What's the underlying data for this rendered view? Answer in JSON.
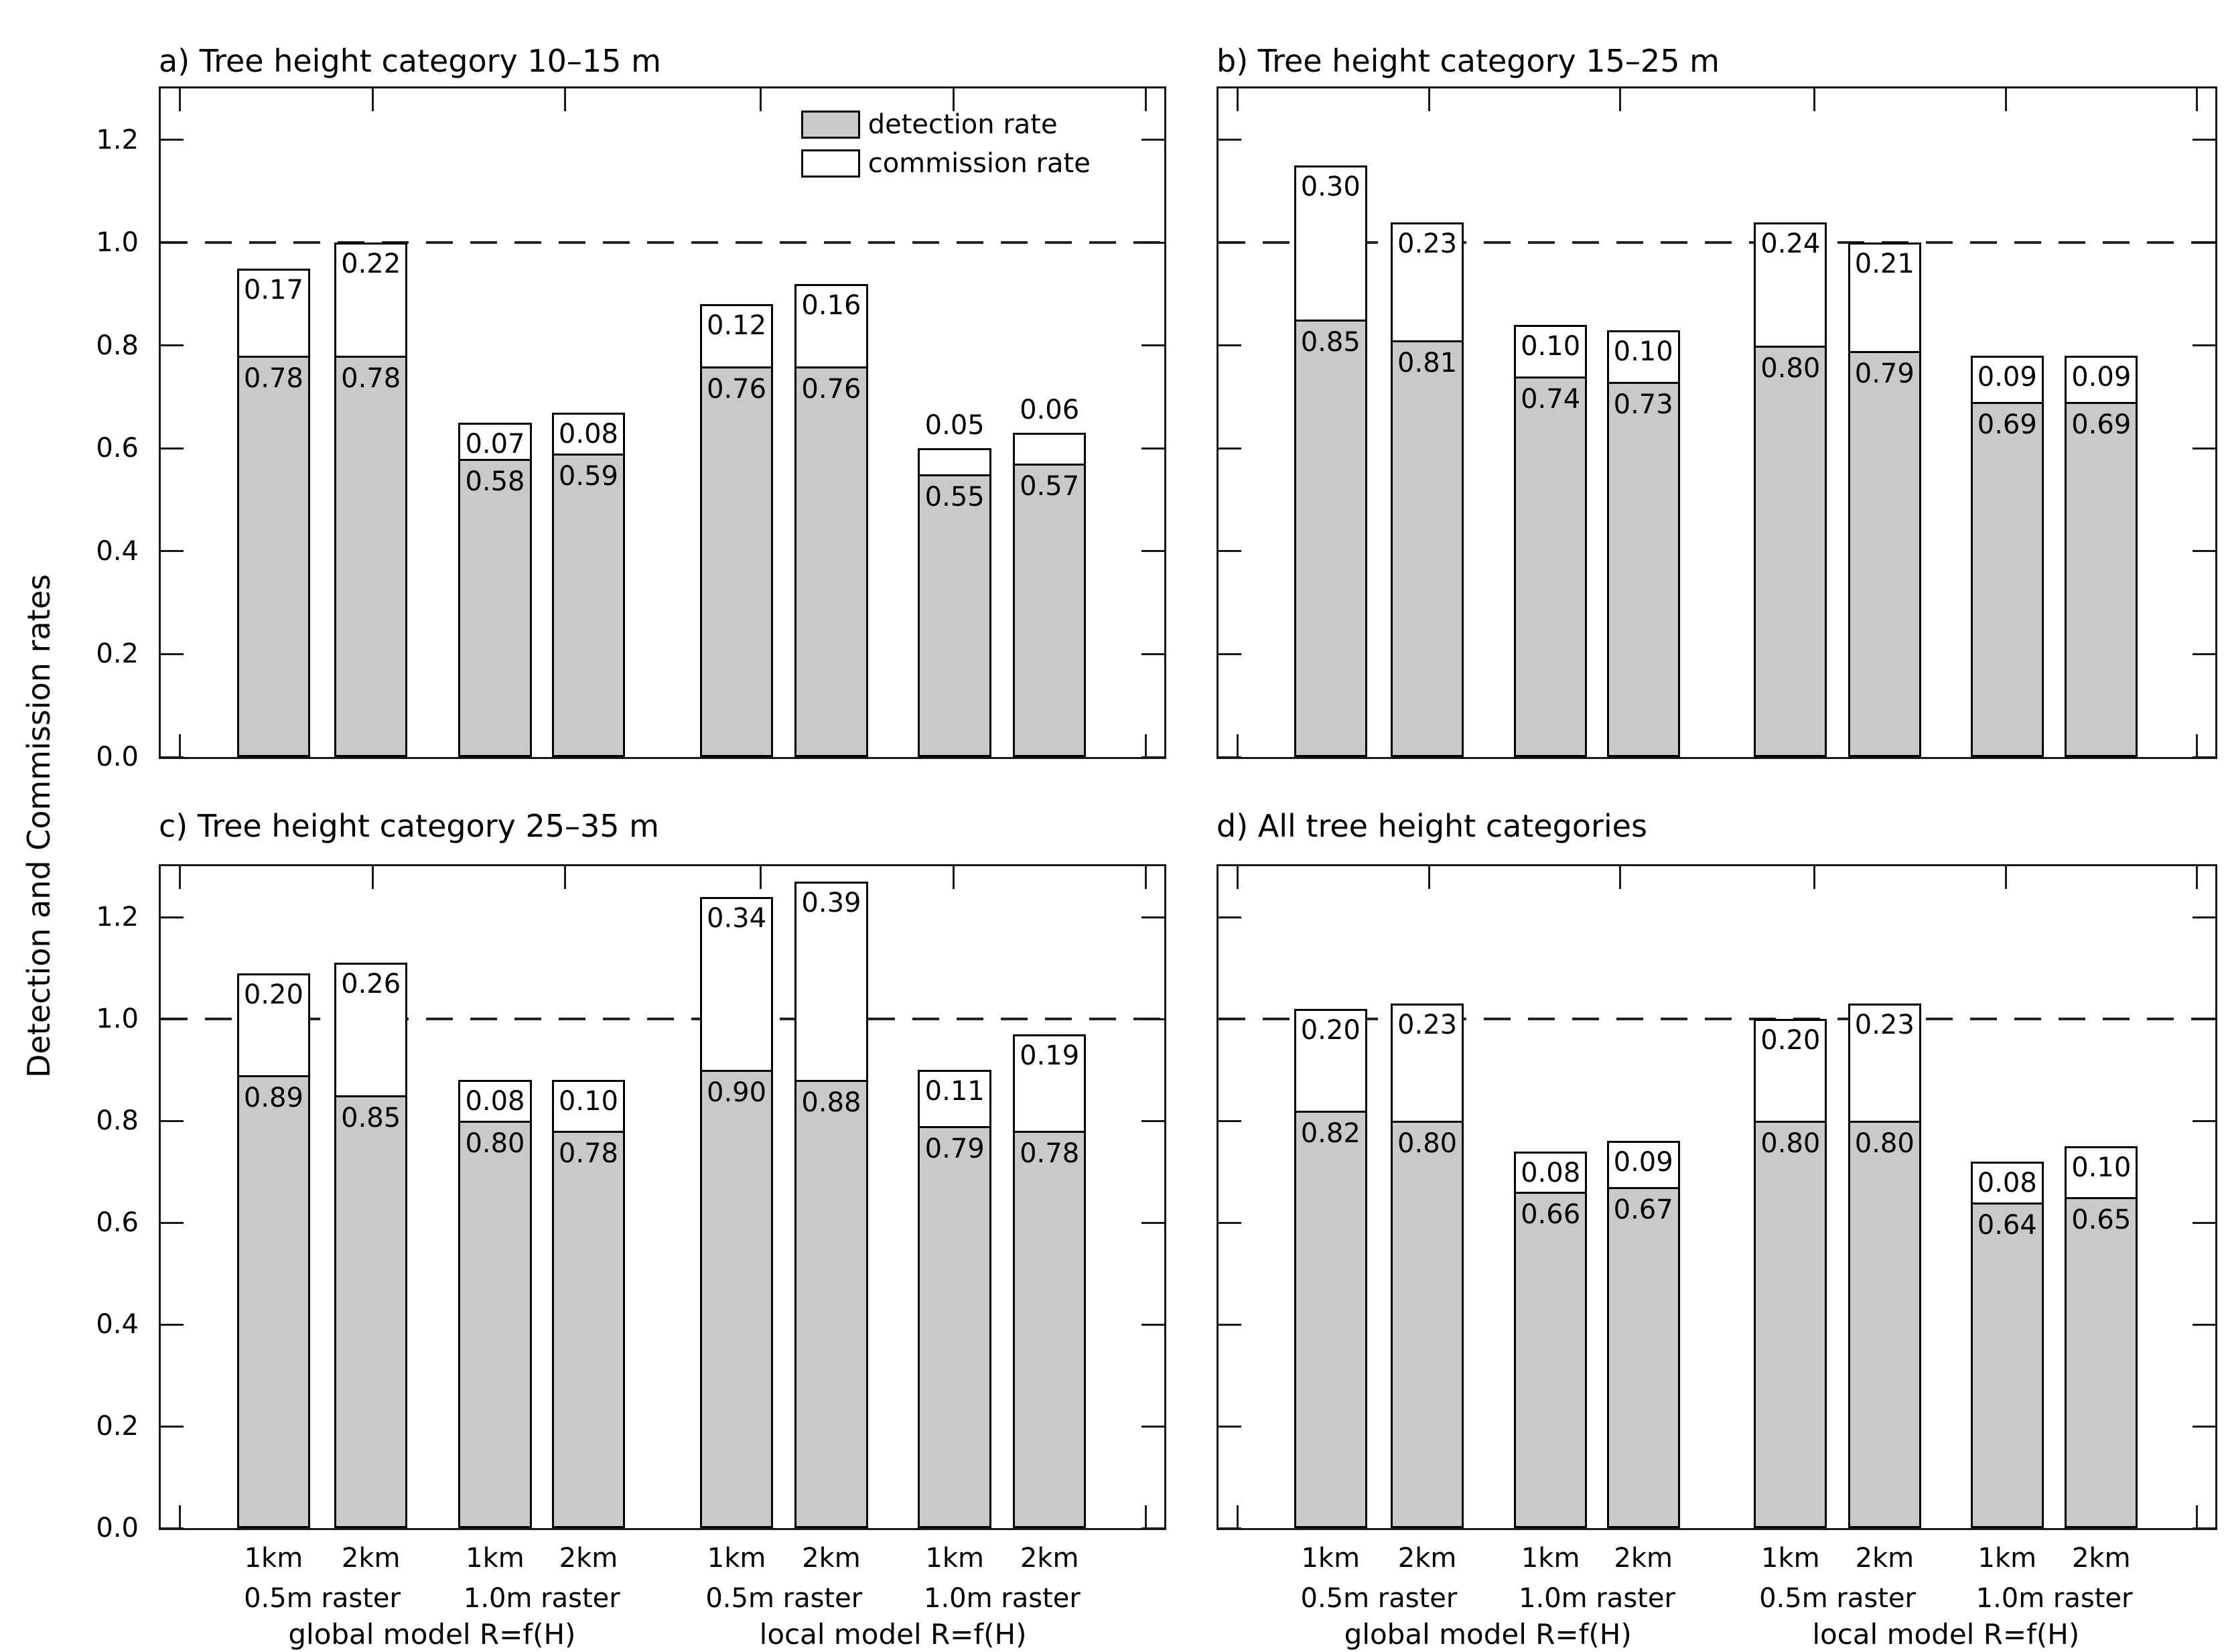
{
  "chart_data": {
    "type": "bar",
    "stacked": true,
    "ylabel": "Detection and Commission rates",
    "ylim": [
      0,
      1.3
    ],
    "yticks": [
      0.0,
      0.2,
      0.4,
      0.6,
      0.8,
      1.0,
      1.2
    ],
    "dashed_reference_line": 1.0,
    "grid": false,
    "legend": [
      "detection rate",
      "commission rate"
    ],
    "legend_position": "upper right of panel a",
    "categories": [
      "1km",
      "2km",
      "1km",
      "2km",
      "1km",
      "2km",
      "1km",
      "2km"
    ],
    "raster_labels": [
      "0.5m raster",
      "1.0m raster",
      "0.5m raster",
      "1.0m raster"
    ],
    "model_labels": [
      "global model R=f(H)",
      "local model R=f(H)"
    ],
    "panels": [
      {
        "title": "a) Tree height category 10–15 m",
        "series": [
          {
            "name": "detection rate",
            "values": [
              0.78,
              0.78,
              0.58,
              0.59,
              0.76,
              0.76,
              0.55,
              0.57
            ]
          },
          {
            "name": "commission rate",
            "values": [
              0.17,
              0.22,
              0.07,
              0.08,
              0.12,
              0.16,
              0.05,
              0.06
            ]
          }
        ]
      },
      {
        "title": "b) Tree height category 15–25 m",
        "series": [
          {
            "name": "detection rate",
            "values": [
              0.85,
              0.81,
              0.74,
              0.73,
              0.8,
              0.79,
              0.69,
              0.69
            ]
          },
          {
            "name": "commission rate",
            "values": [
              0.3,
              0.23,
              0.1,
              0.1,
              0.24,
              0.21,
              0.09,
              0.09
            ]
          }
        ]
      },
      {
        "title": "c) Tree height category 25–35 m",
        "series": [
          {
            "name": "detection rate",
            "values": [
              0.89,
              0.85,
              0.8,
              0.78,
              0.9,
              0.88,
              0.79,
              0.78
            ]
          },
          {
            "name": "commission rate",
            "values": [
              0.2,
              0.26,
              0.08,
              0.1,
              0.34,
              0.39,
              0.11,
              0.19
            ]
          }
        ]
      },
      {
        "title": "d) All tree height categories",
        "series": [
          {
            "name": "detection rate",
            "values": [
              0.82,
              0.8,
              0.66,
              0.67,
              0.8,
              0.8,
              0.64,
              0.65
            ]
          },
          {
            "name": "commission rate",
            "values": [
              0.2,
              0.23,
              0.08,
              0.09,
              0.2,
              0.23,
              0.08,
              0.1
            ]
          }
        ]
      }
    ]
  },
  "colors": {
    "detection_fill": "#c9c9c9",
    "commission_fill": "#ffffff",
    "bar_edge": "#000000",
    "axis": "#1a1a1a",
    "background": "#ffffff"
  }
}
